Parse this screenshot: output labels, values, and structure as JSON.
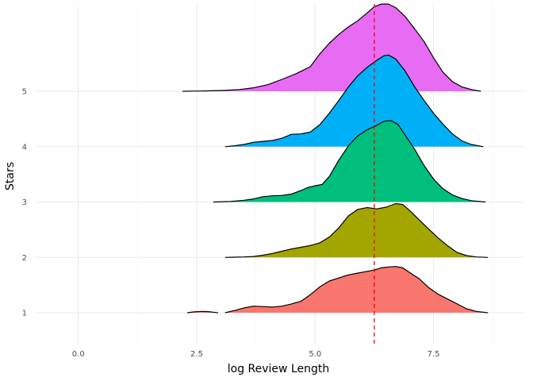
{
  "chart_data": {
    "type": "ridgeline",
    "xlabel": "log Review Length",
    "ylabel": "Stars",
    "xlim": [
      -0.9,
      9.4
    ],
    "x_ticks": [
      "0.0",
      "2.5",
      "5.0",
      "7.5"
    ],
    "x_tick_values": [
      0,
      2.5,
      5,
      7.5
    ],
    "y_ticks": [
      "1",
      "2",
      "3",
      "4",
      "5"
    ],
    "y_tick_values": [
      1,
      2,
      3,
      4,
      5
    ],
    "grid": true,
    "legend": "none",
    "reference_line": {
      "x": 6.25,
      "style": "dashed",
      "color": "#ff0000"
    },
    "series": [
      {
        "name": "1",
        "color": "#F8766D",
        "x_range": [
          3.1,
          8.65
        ],
        "points": [
          [
            3.1,
            0
          ],
          [
            3.3,
            0.05
          ],
          [
            3.5,
            0.11
          ],
          [
            3.7,
            0.15
          ],
          [
            3.9,
            0.14
          ],
          [
            4.1,
            0.13
          ],
          [
            4.3,
            0.15
          ],
          [
            4.5,
            0.2
          ],
          [
            4.7,
            0.26
          ],
          [
            4.9,
            0.41
          ],
          [
            5.1,
            0.59
          ],
          [
            5.3,
            0.72
          ],
          [
            5.5,
            0.79
          ],
          [
            5.7,
            0.86
          ],
          [
            5.9,
            0.9
          ],
          [
            6.1,
            0.94
          ],
          [
            6.25,
            0.97
          ],
          [
            6.4,
            1.02
          ],
          [
            6.55,
            1.04
          ],
          [
            6.7,
            1.05
          ],
          [
            6.85,
            1.02
          ],
          [
            7.0,
            0.91
          ],
          [
            7.2,
            0.77
          ],
          [
            7.4,
            0.57
          ],
          [
            7.6,
            0.42
          ],
          [
            7.8,
            0.31
          ],
          [
            8.0,
            0.2
          ],
          [
            8.2,
            0.09
          ],
          [
            8.4,
            0.03
          ],
          [
            8.65,
            0
          ]
        ],
        "extra_blob": [
          [
            2.3,
            0
          ],
          [
            2.45,
            0.02
          ],
          [
            2.6,
            0.03
          ],
          [
            2.75,
            0.025
          ],
          [
            2.9,
            0.005
          ],
          [
            2.95,
            0
          ]
        ]
      },
      {
        "name": "2",
        "color": "#A3A500",
        "x_range": [
          3.1,
          8.65
        ],
        "points": [
          [
            3.1,
            0
          ],
          [
            3.3,
            0.005
          ],
          [
            3.5,
            0.01
          ],
          [
            3.7,
            0.02
          ],
          [
            3.9,
            0.05
          ],
          [
            4.1,
            0.09
          ],
          [
            4.3,
            0.14
          ],
          [
            4.5,
            0.19
          ],
          [
            4.7,
            0.23
          ],
          [
            4.9,
            0.27
          ],
          [
            5.1,
            0.33
          ],
          [
            5.3,
            0.46
          ],
          [
            5.5,
            0.67
          ],
          [
            5.7,
            0.94
          ],
          [
            5.9,
            1.09
          ],
          [
            6.1,
            1.13
          ],
          [
            6.3,
            1.1
          ],
          [
            6.5,
            1.14
          ],
          [
            6.7,
            1.22
          ],
          [
            6.85,
            1.2
          ],
          [
            7.0,
            1.06
          ],
          [
            7.2,
            0.85
          ],
          [
            7.4,
            0.64
          ],
          [
            7.6,
            0.44
          ],
          [
            7.8,
            0.26
          ],
          [
            8.0,
            0.11
          ],
          [
            8.2,
            0.04
          ],
          [
            8.4,
            0.01
          ],
          [
            8.65,
            0
          ]
        ]
      },
      {
        "name": "3",
        "color": "#00BF7D",
        "x_range": [
          2.85,
          8.6
        ],
        "points": [
          [
            2.85,
            0
          ],
          [
            3.2,
            0.01
          ],
          [
            3.5,
            0.04
          ],
          [
            3.7,
            0.07
          ],
          [
            3.9,
            0.12
          ],
          [
            4.1,
            0.14
          ],
          [
            4.3,
            0.15
          ],
          [
            4.5,
            0.18
          ],
          [
            4.7,
            0.26
          ],
          [
            4.85,
            0.33
          ],
          [
            5.0,
            0.37
          ],
          [
            5.15,
            0.4
          ],
          [
            5.3,
            0.58
          ],
          [
            5.5,
            0.95
          ],
          [
            5.7,
            1.27
          ],
          [
            5.9,
            1.5
          ],
          [
            6.1,
            1.64
          ],
          [
            6.3,
            1.74
          ],
          [
            6.45,
            1.83
          ],
          [
            6.6,
            1.85
          ],
          [
            6.75,
            1.76
          ],
          [
            6.9,
            1.52
          ],
          [
            7.1,
            1.2
          ],
          [
            7.3,
            0.83
          ],
          [
            7.5,
            0.52
          ],
          [
            7.7,
            0.3
          ],
          [
            7.9,
            0.16
          ],
          [
            8.1,
            0.08
          ],
          [
            8.3,
            0.03
          ],
          [
            8.6,
            0
          ]
        ]
      },
      {
        "name": "4",
        "color": "#00B0F6",
        "x_range": [
          3.1,
          8.55
        ],
        "points": [
          [
            3.1,
            0
          ],
          [
            3.3,
            0.02
          ],
          [
            3.5,
            0.05
          ],
          [
            3.7,
            0.1
          ],
          [
            3.9,
            0.12
          ],
          [
            4.1,
            0.14
          ],
          [
            4.3,
            0.19
          ],
          [
            4.5,
            0.28
          ],
          [
            4.7,
            0.29
          ],
          [
            4.9,
            0.33
          ],
          [
            5.1,
            0.5
          ],
          [
            5.3,
            0.76
          ],
          [
            5.5,
            1.05
          ],
          [
            5.7,
            1.35
          ],
          [
            5.9,
            1.61
          ],
          [
            6.1,
            1.8
          ],
          [
            6.3,
            1.96
          ],
          [
            6.45,
            2.06
          ],
          [
            6.55,
            2.08
          ],
          [
            6.7,
            1.99
          ],
          [
            6.9,
            1.72
          ],
          [
            7.1,
            1.36
          ],
          [
            7.3,
            1.05
          ],
          [
            7.5,
            0.76
          ],
          [
            7.7,
            0.51
          ],
          [
            7.9,
            0.29
          ],
          [
            8.1,
            0.13
          ],
          [
            8.3,
            0.05
          ],
          [
            8.55,
            0
          ]
        ]
      },
      {
        "name": "5",
        "color": "#E76BF3",
        "x_range": [
          2.2,
          8.5
        ],
        "points": [
          [
            2.2,
            0
          ],
          [
            2.5,
            0.005
          ],
          [
            2.8,
            0.01
          ],
          [
            3.1,
            0.02
          ],
          [
            3.4,
            0.04
          ],
          [
            3.7,
            0.08
          ],
          [
            4.0,
            0.15
          ],
          [
            4.3,
            0.27
          ],
          [
            4.6,
            0.4
          ],
          [
            4.9,
            0.56
          ],
          [
            5.1,
            0.85
          ],
          [
            5.3,
            1.09
          ],
          [
            5.5,
            1.29
          ],
          [
            5.7,
            1.46
          ],
          [
            5.9,
            1.6
          ],
          [
            6.1,
            1.78
          ],
          [
            6.25,
            1.92
          ],
          [
            6.4,
            1.98
          ],
          [
            6.55,
            1.98
          ],
          [
            6.7,
            1.9
          ],
          [
            6.9,
            1.7
          ],
          [
            7.1,
            1.42
          ],
          [
            7.3,
            1.13
          ],
          [
            7.5,
            0.76
          ],
          [
            7.7,
            0.43
          ],
          [
            7.9,
            0.22
          ],
          [
            8.1,
            0.1
          ],
          [
            8.3,
            0.04
          ],
          [
            8.5,
            0
          ]
        ]
      }
    ]
  }
}
